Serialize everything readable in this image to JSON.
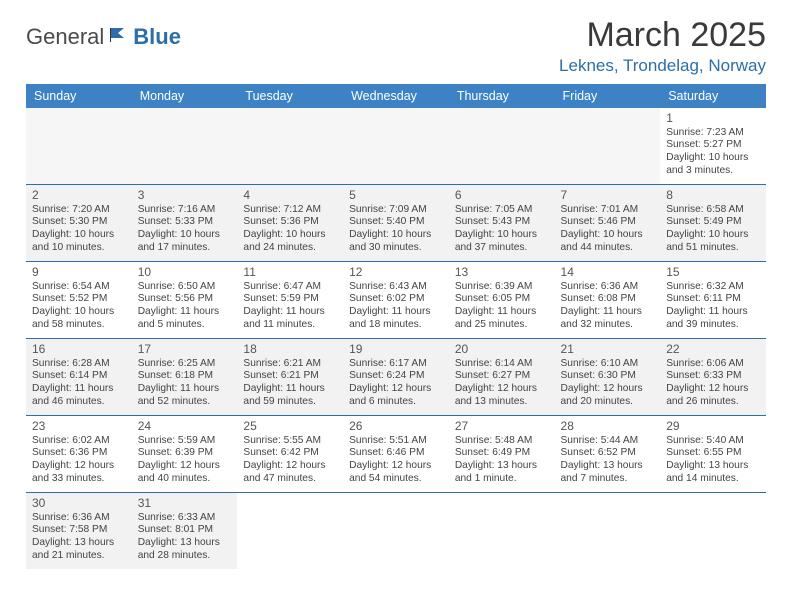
{
  "brand": {
    "word1": "General",
    "word2": "Blue"
  },
  "header": {
    "month_title": "March 2025",
    "location": "Leknes, Trondelag, Norway"
  },
  "colors": {
    "header_blue": "#3d82c4",
    "rule_blue": "#2d6ea8",
    "offwhite": "#f2f2f2"
  },
  "weekdays": [
    "Sunday",
    "Monday",
    "Tuesday",
    "Wednesday",
    "Thursday",
    "Friday",
    "Saturday"
  ],
  "labels": {
    "sunrise": "Sunrise:",
    "sunset": "Sunset:",
    "daylight": "Daylight:"
  },
  "weeks": [
    [
      null,
      null,
      null,
      null,
      null,
      null,
      {
        "d": "1",
        "rise": "7:23 AM",
        "set": "5:27 PM",
        "dl": "10 hours and 3 minutes."
      }
    ],
    [
      {
        "d": "2",
        "rise": "7:20 AM",
        "set": "5:30 PM",
        "dl": "10 hours and 10 minutes."
      },
      {
        "d": "3",
        "rise": "7:16 AM",
        "set": "5:33 PM",
        "dl": "10 hours and 17 minutes."
      },
      {
        "d": "4",
        "rise": "7:12 AM",
        "set": "5:36 PM",
        "dl": "10 hours and 24 minutes."
      },
      {
        "d": "5",
        "rise": "7:09 AM",
        "set": "5:40 PM",
        "dl": "10 hours and 30 minutes."
      },
      {
        "d": "6",
        "rise": "7:05 AM",
        "set": "5:43 PM",
        "dl": "10 hours and 37 minutes."
      },
      {
        "d": "7",
        "rise": "7:01 AM",
        "set": "5:46 PM",
        "dl": "10 hours and 44 minutes."
      },
      {
        "d": "8",
        "rise": "6:58 AM",
        "set": "5:49 PM",
        "dl": "10 hours and 51 minutes."
      }
    ],
    [
      {
        "d": "9",
        "rise": "6:54 AM",
        "set": "5:52 PM",
        "dl": "10 hours and 58 minutes."
      },
      {
        "d": "10",
        "rise": "6:50 AM",
        "set": "5:56 PM",
        "dl": "11 hours and 5 minutes."
      },
      {
        "d": "11",
        "rise": "6:47 AM",
        "set": "5:59 PM",
        "dl": "11 hours and 11 minutes."
      },
      {
        "d": "12",
        "rise": "6:43 AM",
        "set": "6:02 PM",
        "dl": "11 hours and 18 minutes."
      },
      {
        "d": "13",
        "rise": "6:39 AM",
        "set": "6:05 PM",
        "dl": "11 hours and 25 minutes."
      },
      {
        "d": "14",
        "rise": "6:36 AM",
        "set": "6:08 PM",
        "dl": "11 hours and 32 minutes."
      },
      {
        "d": "15",
        "rise": "6:32 AM",
        "set": "6:11 PM",
        "dl": "11 hours and 39 minutes."
      }
    ],
    [
      {
        "d": "16",
        "rise": "6:28 AM",
        "set": "6:14 PM",
        "dl": "11 hours and 46 minutes."
      },
      {
        "d": "17",
        "rise": "6:25 AM",
        "set": "6:18 PM",
        "dl": "11 hours and 52 minutes."
      },
      {
        "d": "18",
        "rise": "6:21 AM",
        "set": "6:21 PM",
        "dl": "11 hours and 59 minutes."
      },
      {
        "d": "19",
        "rise": "6:17 AM",
        "set": "6:24 PM",
        "dl": "12 hours and 6 minutes."
      },
      {
        "d": "20",
        "rise": "6:14 AM",
        "set": "6:27 PM",
        "dl": "12 hours and 13 minutes."
      },
      {
        "d": "21",
        "rise": "6:10 AM",
        "set": "6:30 PM",
        "dl": "12 hours and 20 minutes."
      },
      {
        "d": "22",
        "rise": "6:06 AM",
        "set": "6:33 PM",
        "dl": "12 hours and 26 minutes."
      }
    ],
    [
      {
        "d": "23",
        "rise": "6:02 AM",
        "set": "6:36 PM",
        "dl": "12 hours and 33 minutes."
      },
      {
        "d": "24",
        "rise": "5:59 AM",
        "set": "6:39 PM",
        "dl": "12 hours and 40 minutes."
      },
      {
        "d": "25",
        "rise": "5:55 AM",
        "set": "6:42 PM",
        "dl": "12 hours and 47 minutes."
      },
      {
        "d": "26",
        "rise": "5:51 AM",
        "set": "6:46 PM",
        "dl": "12 hours and 54 minutes."
      },
      {
        "d": "27",
        "rise": "5:48 AM",
        "set": "6:49 PM",
        "dl": "13 hours and 1 minute."
      },
      {
        "d": "28",
        "rise": "5:44 AM",
        "set": "6:52 PM",
        "dl": "13 hours and 7 minutes."
      },
      {
        "d": "29",
        "rise": "5:40 AM",
        "set": "6:55 PM",
        "dl": "13 hours and 14 minutes."
      }
    ],
    [
      {
        "d": "30",
        "rise": "6:36 AM",
        "set": "7:58 PM",
        "dl": "13 hours and 21 minutes."
      },
      {
        "d": "31",
        "rise": "6:33 AM",
        "set": "8:01 PM",
        "dl": "13 hours and 28 minutes."
      },
      null,
      null,
      null,
      null,
      null
    ]
  ]
}
